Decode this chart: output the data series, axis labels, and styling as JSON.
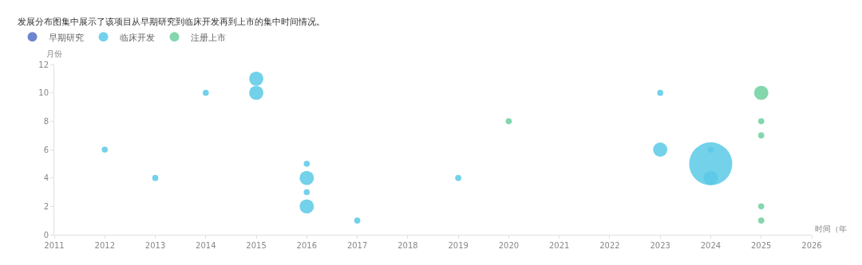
{
  "chart_data": {
    "type": "bubble",
    "title": "发展分布图集中展示了该项目从早期研究到临床开发再到上市的集中时间情况。",
    "xlabel": "时间（年",
    "ylabel": "月份",
    "xlim": [
      2011,
      2026
    ],
    "xticks": [
      2011,
      2012,
      2013,
      2014,
      2015,
      2016,
      2017,
      2018,
      2019,
      2020,
      2021,
      2022,
      2023,
      2024,
      2025,
      2026
    ],
    "ylim": [
      0,
      12
    ],
    "yticks": [
      0,
      2,
      4,
      6,
      8,
      10,
      12
    ],
    "grid": false,
    "legend": "top left",
    "series": [
      {
        "name": "早期研究",
        "color": "#5470c6"
      },
      {
        "name": "临床开发",
        "color": "#5bc9e6",
        "x": [
          2024,
          2012,
          2013,
          2014,
          2015,
          2015,
          2016,
          2016,
          2016,
          2016,
          2017,
          2019,
          2023,
          2023,
          2024,
          2024
        ],
        "values": [
          5,
          6,
          4,
          10,
          11,
          10,
          5,
          4,
          3,
          2,
          1,
          4,
          10,
          6,
          6,
          4
        ],
        "sizes": [
          1,
          0.02,
          0.02,
          0.02,
          0.11,
          0.11,
          0.02,
          0.11,
          0.02,
          0.11,
          0.02,
          0.02,
          0.02,
          0.11,
          0.02,
          0.11
        ]
      },
      {
        "name": "注册上市",
        "color": "#6fcf9f",
        "x": [
          2020,
          2025,
          2025,
          2025,
          2025,
          2025
        ],
        "values": [
          8,
          10,
          8,
          7,
          2,
          1
        ],
        "sizes": [
          0.02,
          0.11,
          0.02,
          0.02,
          0.02,
          0.02
        ]
      }
    ]
  }
}
